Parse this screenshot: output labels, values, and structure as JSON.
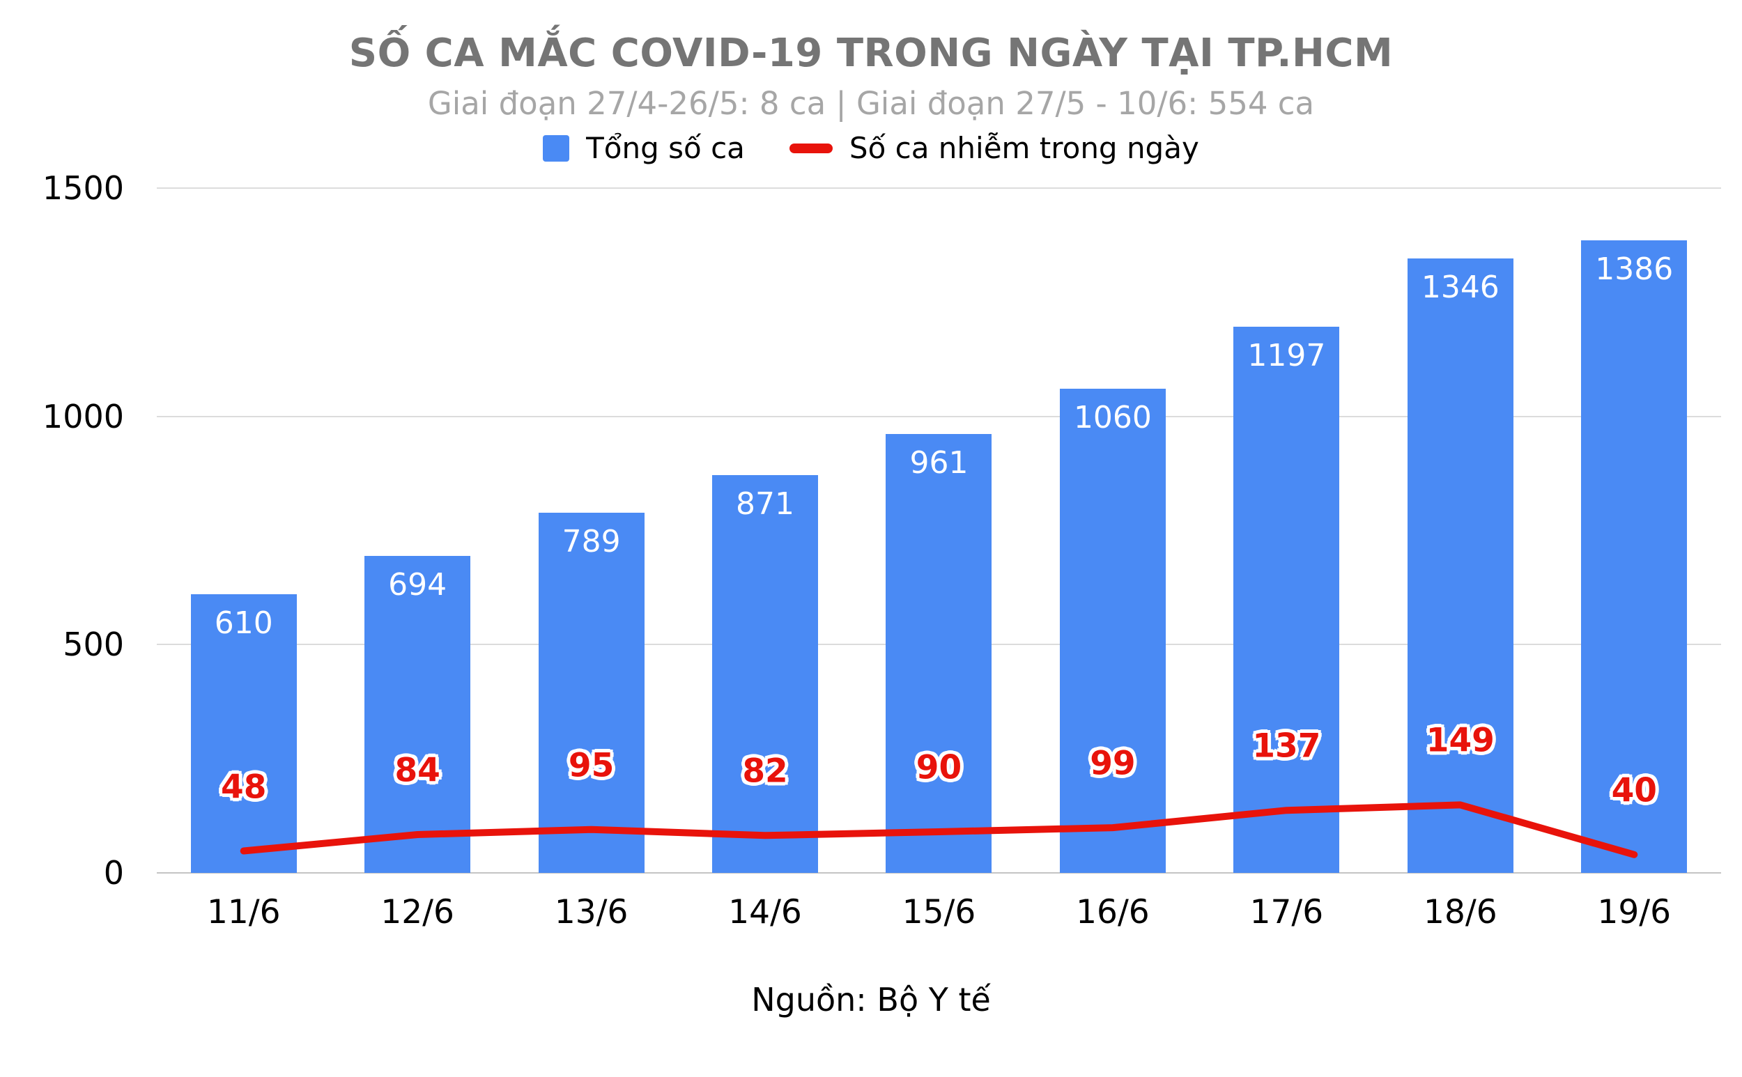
{
  "title": "SỐ CA MẮC COVID-19 TRONG NGÀY TẠI TP.HCM",
  "subtitle": "Giai đoạn 27/4-26/5: 8 ca | Giai đoạn 27/5 - 10/6: 554 ca",
  "source": "Nguồn: Bộ Y tế",
  "legend": [
    {
      "label": "Tổng số ca",
      "series": "bar"
    },
    {
      "label": "Số ca nhiễm trong ngày",
      "series": "line"
    }
  ],
  "colors": {
    "bar": "#4a8af4",
    "line": "#e8130b",
    "title": "#757575",
    "subtitle": "#a6a6a6",
    "grid": "#dcdcdc",
    "axis": "#c4c4c4",
    "text": "#000000"
  },
  "chart_data": {
    "type": "bar",
    "categories": [
      "11/6",
      "12/6",
      "13/6",
      "14/6",
      "15/6",
      "16/6",
      "17/6",
      "18/6",
      "19/6"
    ],
    "series": [
      {
        "name": "Tổng số ca",
        "type": "bar",
        "values": [
          610,
          694,
          789,
          871,
          961,
          1060,
          1197,
          1346,
          1386
        ]
      },
      {
        "name": "Số ca nhiễm trong ngày",
        "type": "line",
        "values": [
          48,
          84,
          95,
          82,
          90,
          99,
          137,
          149,
          40
        ]
      }
    ],
    "title": "SỐ CA MẮC COVID-19 TRONG NGÀY TẠI TP.HCM",
    "xlabel": "",
    "ylabel": "",
    "ylim": [
      0,
      1500
    ],
    "yticks": [
      0,
      500,
      1000,
      1500
    ],
    "grid": true,
    "legend_position": "top"
  }
}
